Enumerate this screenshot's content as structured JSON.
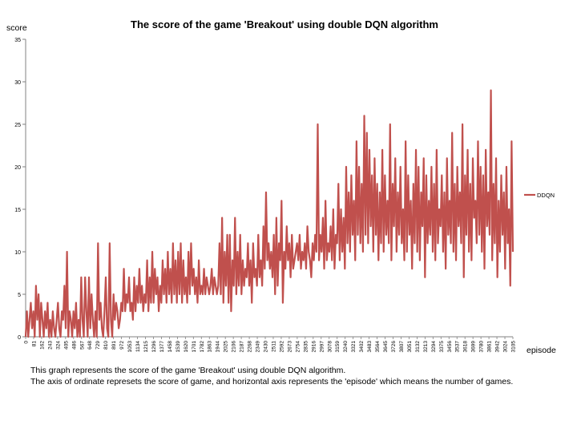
{
  "chart_data": {
    "type": "line",
    "title": "The score of the game 'Breakout' using double DQN algorithm",
    "ylabel": "score",
    "xlabel": "episode",
    "ylim": [
      0,
      35
    ],
    "yticks": [
      0,
      5,
      10,
      15,
      20,
      25,
      30,
      35
    ],
    "xlim": [
      0,
      3105
    ],
    "xtick_labels": [
      "0",
      "81",
      "162",
      "243",
      "324",
      "405",
      "486",
      "567",
      "648",
      "729",
      "810",
      "891",
      "972",
      "1053",
      "1134",
      "1215",
      "1296",
      "1377",
      "1458",
      "1539",
      "1620",
      "1701",
      "1782",
      "1863",
      "1944",
      "2025",
      "2106",
      "2187",
      "2268",
      "2349",
      "2430",
      "2511",
      "2592",
      "2673",
      "2754",
      "2835",
      "2916",
      "2997",
      "3078",
      "3159",
      "3240",
      "3321",
      "3402",
      "3483",
      "3564",
      "3645",
      "3726",
      "3807",
      "3051",
      "3132",
      "3213",
      "3294",
      "3375",
      "3456",
      "3537",
      "3618",
      "3699",
      "3780",
      "3861",
      "3942",
      "3024",
      "3105"
    ],
    "grid": false,
    "legend_position": "right",
    "series": [
      {
        "name": "DDQN",
        "color": "#c0504d",
        "values": [
          0,
          3,
          0,
          2,
          4,
          1,
          3,
          0,
          6,
          2,
          5,
          0,
          4,
          2,
          0,
          3,
          1,
          4,
          0,
          2,
          0,
          3,
          1,
          0,
          2,
          4,
          1,
          0,
          3,
          2,
          6,
          1,
          10,
          0,
          3,
          2,
          0,
          3,
          1,
          4,
          0,
          2,
          0,
          7,
          2,
          0,
          7,
          3,
          0,
          7,
          1,
          5,
          2,
          0,
          3,
          0,
          11,
          2,
          4,
          1,
          0,
          3,
          7,
          1,
          0,
          11,
          2,
          0,
          5,
          2,
          4,
          3,
          1,
          2,
          4,
          3,
          8,
          3,
          5,
          4,
          7,
          3,
          4,
          2,
          7,
          3,
          6,
          4,
          8,
          4,
          6,
          3,
          5,
          4,
          9,
          3,
          7,
          4,
          10,
          4,
          8,
          5,
          7,
          3,
          6,
          4,
          9,
          5,
          8,
          4,
          10,
          5,
          8,
          4,
          11,
          5,
          9,
          4,
          10,
          5,
          11,
          4,
          9,
          5,
          7,
          4,
          10,
          5,
          11,
          6,
          8,
          5,
          7,
          4,
          9,
          5,
          6,
          5,
          8,
          5,
          7,
          6,
          5,
          6,
          8,
          5,
          7,
          6,
          5,
          6,
          11,
          5,
          14,
          4,
          10,
          6,
          12,
          4,
          12,
          3,
          9,
          6,
          14,
          5,
          10,
          6,
          12,
          5,
          9,
          6,
          8,
          7,
          11,
          6,
          9,
          4,
          11,
          7,
          8,
          6,
          12,
          7,
          9,
          6,
          13,
          8,
          17,
          9,
          11,
          8,
          10,
          7,
          12,
          5,
          14,
          6,
          11,
          9,
          16,
          4,
          10,
          8,
          13,
          9,
          11,
          7,
          12,
          8,
          9,
          10,
          11,
          9,
          12,
          8,
          10,
          9,
          11,
          8,
          13,
          10,
          9,
          7,
          11,
          9,
          12,
          10,
          25,
          9,
          12,
          10,
          14,
          8,
          16,
          9,
          11,
          10,
          13,
          9,
          15,
          8,
          12,
          11,
          18,
          9,
          15,
          10,
          14,
          8,
          20,
          11,
          17,
          10,
          19,
          12,
          16,
          9,
          23,
          12,
          20,
          11,
          18,
          10,
          26,
          12,
          24,
          11,
          22,
          13,
          19,
          10,
          21,
          12,
          18,
          9,
          17,
          11,
          22,
          10,
          19,
          12,
          16,
          11,
          25,
          9,
          18,
          13,
          21,
          10,
          17,
          12,
          20,
          11,
          15,
          9,
          23,
          10,
          19,
          12,
          16,
          8,
          18,
          11,
          22,
          10,
          20,
          9,
          17,
          13,
          21,
          7,
          19,
          11,
          16,
          12,
          20,
          10,
          18,
          9,
          22,
          11,
          15,
          13,
          19,
          10,
          17,
          8,
          21,
          12,
          16,
          11,
          24,
          10,
          18,
          9,
          20,
          13,
          17,
          11,
          25,
          7,
          19,
          12,
          22,
          10,
          18,
          9,
          21,
          14,
          16,
          11,
          23,
          12,
          20,
          10,
          19,
          8,
          22,
          13,
          17,
          12,
          29,
          9,
          18,
          11,
          21,
          7,
          16,
          10,
          19,
          12,
          17,
          8,
          20,
          11,
          15,
          6,
          23,
          10
        ]
      }
    ]
  },
  "caption": {
    "line1": "This graph represents the score of the game 'Breakout' using double DQN algorithm.",
    "line2": "The axis of ordinate represets the score of game, and horizontal axis represents the 'episode' which means the number of games."
  }
}
